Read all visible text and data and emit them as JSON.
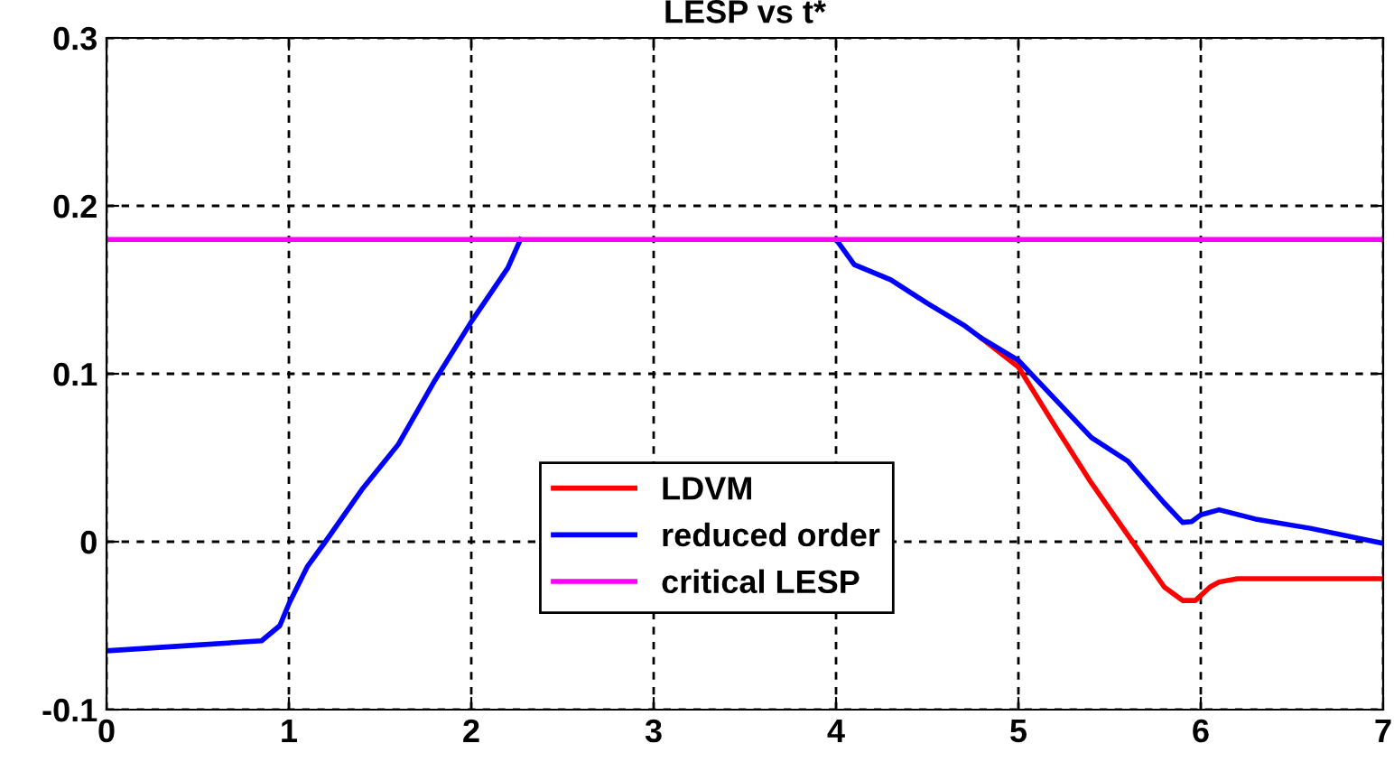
{
  "chart_data": {
    "type": "line",
    "title": "LESP vs t*",
    "xlim": [
      0,
      7
    ],
    "ylim": [
      -0.1,
      0.3
    ],
    "xticks": [
      0,
      1,
      2,
      3,
      4,
      5,
      6,
      7
    ],
    "yticks": [
      {
        "value": -0.1,
        "label": "-0.1"
      },
      0,
      0.1,
      0.2,
      0.3
    ],
    "grid": true,
    "legend": "bottom",
    "line_style": "solid",
    "series": [
      {
        "name": "LDVM",
        "color": "#ff0000",
        "x": [
          4.8,
          5.0,
          5.2,
          5.4,
          5.6,
          5.8,
          5.9,
          5.97,
          6.05,
          6.1,
          6.2,
          7.0
        ],
        "values": [
          0.121,
          0.104,
          0.069,
          0.035,
          0.004,
          -0.027,
          -0.035,
          -0.035,
          -0.027,
          -0.024,
          -0.022,
          -0.022
        ]
      },
      {
        "name": "reduced order",
        "color": "#0000ff",
        "x": [
          0,
          0.5,
          0.85,
          0.95,
          1.0,
          1.1,
          1.2,
          1.4,
          1.6,
          1.8,
          2.0,
          2.2,
          2.27,
          3.0,
          4.0,
          4.1,
          4.3,
          4.5,
          4.7,
          4.8,
          5.0,
          5.2,
          5.4,
          5.6,
          5.8,
          5.9,
          5.95,
          6.0,
          6.1,
          6.3,
          6.6,
          7.0
        ],
        "values": [
          -0.065,
          -0.0615,
          -0.059,
          -0.05,
          -0.037,
          -0.015,
          0,
          0.031,
          0.058,
          0.096,
          0.131,
          0.163,
          0.18,
          null,
          0.18,
          0.165,
          0.156,
          0.142,
          0.129,
          0.121,
          0.108,
          0.085,
          0.062,
          0.048,
          0.023,
          0.0115,
          0.012,
          0.016,
          0.019,
          0.0135,
          0.008,
          -0.001
        ]
      },
      {
        "name": "critical LESP",
        "color": "#ff00ff",
        "x": [
          0,
          7
        ],
        "values": [
          0.18,
          0.18
        ]
      }
    ]
  }
}
